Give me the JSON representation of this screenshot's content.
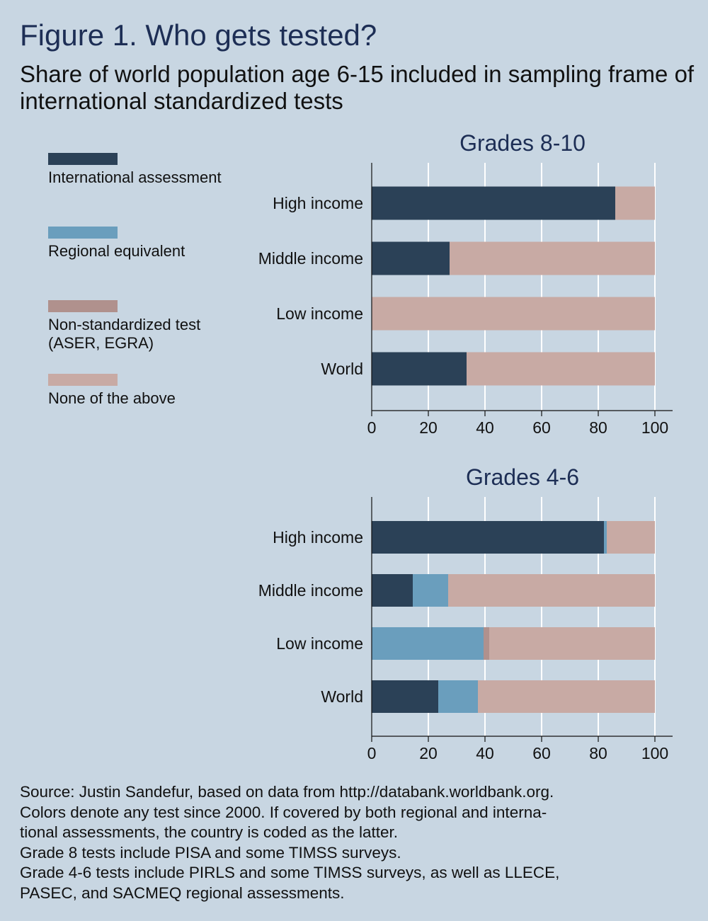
{
  "title": "Figure 1. Who gets tested?",
  "subtitle": "Share of world population age 6-15 included in sampling frame of international standardized tests",
  "legend": [
    {
      "label": "International assessment",
      "color": "#2b4157"
    },
    {
      "label": "Regional equivalent",
      "color": "#6a9ebd"
    },
    {
      "label": "Non-standardized test (ASER, EGRA)",
      "color": "#b0918d"
    },
    {
      "label": "None of the above",
      "color": "#c8aaa4"
    }
  ],
  "chart_data": [
    {
      "type": "bar",
      "orientation": "horizontal",
      "stacked": true,
      "title": "Grades 8-10",
      "categories": [
        "High income",
        "Middle income",
        "Low income",
        "World"
      ],
      "series": [
        {
          "name": "International assessment",
          "values": [
            86,
            27.5,
            0,
            33.5
          ]
        },
        {
          "name": "Regional equivalent",
          "values": [
            0,
            0,
            0,
            0
          ]
        },
        {
          "name": "Non-standardized test (ASER, EGRA)",
          "values": [
            0,
            0,
            0,
            0
          ]
        },
        {
          "name": "None of the above",
          "values": [
            14,
            72.5,
            100,
            66.5
          ]
        }
      ],
      "xlim": [
        0,
        100
      ],
      "xticks": [
        "0",
        "20",
        "40",
        "60",
        "80",
        "100"
      ],
      "grid": true
    },
    {
      "type": "bar",
      "orientation": "horizontal",
      "stacked": true,
      "title": "Grades 4-6",
      "categories": [
        "High income",
        "Middle income",
        "Low income",
        "World"
      ],
      "series": [
        {
          "name": "International assessment",
          "values": [
            82,
            14.5,
            0,
            23.5
          ]
        },
        {
          "name": "Regional equivalent",
          "values": [
            1,
            12.5,
            39.5,
            14
          ]
        },
        {
          "name": "Non-standardized test (ASER, EGRA)",
          "values": [
            0,
            0,
            2,
            0
          ]
        },
        {
          "name": "None of the above",
          "values": [
            17,
            73,
            58.5,
            62.5
          ]
        }
      ],
      "xlim": [
        0,
        100
      ],
      "xticks": [
        "0",
        "20",
        "40",
        "60",
        "80",
        "100"
      ],
      "grid": true
    }
  ],
  "notes": [
    "Source: Justin Sandefur, based on data from http://databank.worldbank.org.",
    "Colors denote any test since 2000. If covered by both regional and interna-",
    "tional assessments, the country is coded as the latter.",
    "Grade 8 tests include PISA and some TIMSS surveys.",
    "Grade 4-6 tests include PIRLS and some TIMSS surveys, as well as LLECE,",
    "PASEC, and SACMEQ regional assessments."
  ]
}
